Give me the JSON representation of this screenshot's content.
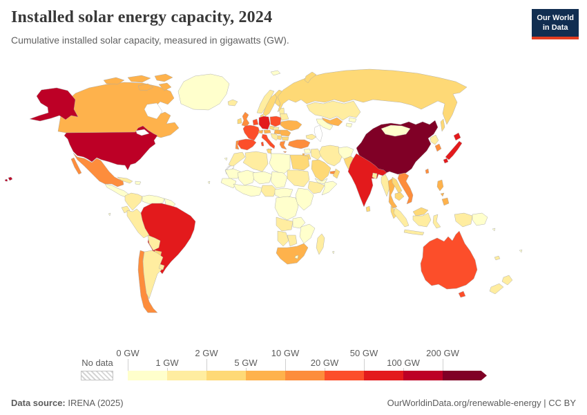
{
  "header": {
    "title": "Installed solar energy capacity, 2024",
    "subtitle": "Cumulative installed solar capacity, measured in gigawatts (GW)."
  },
  "logo": {
    "line1": "Our World",
    "line2": "in Data",
    "bg_color": "#112e51",
    "stripe_color": "#e23d20"
  },
  "legend": {
    "no_data_label": "No data",
    "tick_labels": [
      "0 GW",
      "1 GW",
      "2 GW",
      "5 GW",
      "10 GW",
      "20 GW",
      "50 GW",
      "100 GW",
      "200 GW"
    ]
  },
  "footer": {
    "source_label": "Data source:",
    "source_value": " IRENA (2025)",
    "right_text": "OurWorldinData.org/renewable-energy | CC BY"
  },
  "colors": {
    "ocean": "#ffffff",
    "border": "#a8a8a8"
  },
  "chart_data": {
    "type": "choropleth",
    "title": "Installed solar energy capacity, 2024",
    "unit": "GW",
    "legend_position": "bottom",
    "bins": [
      {
        "key": "0-1",
        "label": "0 GW",
        "color": "#FFFFCC"
      },
      {
        "key": "1-2",
        "label": "1 GW",
        "color": "#FFEDA0"
      },
      {
        "key": "2-5",
        "label": "2 GW",
        "color": "#FED976"
      },
      {
        "key": "5-10",
        "label": "5 GW",
        "color": "#FEB24C"
      },
      {
        "key": "10-20",
        "label": "10 GW",
        "color": "#FD8D3C"
      },
      {
        "key": "20-50",
        "label": "20 GW",
        "color": "#FC4E2A"
      },
      {
        "key": "50-100",
        "label": "50 GW",
        "color": "#E31A1C"
      },
      {
        "key": "100-200",
        "label": "100 GW",
        "color": "#BD0026"
      },
      {
        "key": "200+",
        "label": "200 GW",
        "color": "#800026"
      },
      {
        "key": "no-data",
        "label": "No data",
        "color": "hatch"
      }
    ],
    "countries": [
      {
        "id": "greenland",
        "name": "Greenland",
        "bin": "0-1"
      },
      {
        "id": "iceland",
        "name": "Iceland",
        "bin": "1-2"
      },
      {
        "id": "canada",
        "name": "Canada",
        "bin": "5-10"
      },
      {
        "id": "usa",
        "name": "United States",
        "bin": "100-200"
      },
      {
        "id": "mexico",
        "name": "Mexico",
        "bin": "10-20"
      },
      {
        "id": "central-america",
        "name": "Central America",
        "bin": "0-1"
      },
      {
        "id": "cuba",
        "name": "Cuba",
        "bin": "1-2"
      },
      {
        "id": "hispaniola",
        "name": "Hispaniola",
        "bin": "0-1"
      },
      {
        "id": "colombia",
        "name": "Colombia",
        "bin": "1-2"
      },
      {
        "id": "venezuela",
        "name": "Venezuela",
        "bin": "0-1"
      },
      {
        "id": "guyanas",
        "name": "Guyanas",
        "bin": "0-1"
      },
      {
        "id": "ecuador",
        "name": "Ecuador",
        "bin": "1-2"
      },
      {
        "id": "peru",
        "name": "Peru",
        "bin": "1-2"
      },
      {
        "id": "brazil",
        "name": "Brazil",
        "bin": "50-100"
      },
      {
        "id": "bolivia",
        "name": "Bolivia",
        "bin": "1-2"
      },
      {
        "id": "paraguay",
        "name": "Paraguay",
        "bin": "2-5"
      },
      {
        "id": "chile",
        "name": "Chile",
        "bin": "10-20"
      },
      {
        "id": "argentina",
        "name": "Argentina",
        "bin": "1-2"
      },
      {
        "id": "uruguay",
        "name": "Uruguay",
        "bin": "1-2"
      },
      {
        "id": "norway",
        "name": "Norway",
        "bin": "1-2"
      },
      {
        "id": "sweden",
        "name": "Sweden",
        "bin": "2-5"
      },
      {
        "id": "finland",
        "name": "Finland",
        "bin": "2-5"
      },
      {
        "id": "denmark",
        "name": "Denmark",
        "bin": "2-5"
      },
      {
        "id": "baltics",
        "name": "Baltic states",
        "bin": "1-2"
      },
      {
        "id": "uk",
        "name": "United Kingdom",
        "bin": "10-20"
      },
      {
        "id": "ireland",
        "name": "Ireland",
        "bin": "2-5"
      },
      {
        "id": "benelux",
        "name": "Netherlands and Belgium",
        "bin": "20-50"
      },
      {
        "id": "germany",
        "name": "Germany",
        "bin": "50-100"
      },
      {
        "id": "poland",
        "name": "Poland",
        "bin": "20-50"
      },
      {
        "id": "czechia",
        "name": "Czechia",
        "bin": "2-5"
      },
      {
        "id": "france",
        "name": "France",
        "bin": "20-50"
      },
      {
        "id": "switzerland",
        "name": "Switzerland",
        "bin": "5-10"
      },
      {
        "id": "austria",
        "name": "Austria",
        "bin": "5-10"
      },
      {
        "id": "hungary",
        "name": "Hungary",
        "bin": "5-10"
      },
      {
        "id": "slovakia",
        "name": "Slovakia",
        "bin": "1-2"
      },
      {
        "id": "spain",
        "name": "Spain",
        "bin": "20-50"
      },
      {
        "id": "portugal",
        "name": "Portugal",
        "bin": "10-20"
      },
      {
        "id": "italy",
        "name": "Italy",
        "bin": "20-50"
      },
      {
        "id": "balkans",
        "name": "Western Balkans",
        "bin": "1-2"
      },
      {
        "id": "serbia",
        "name": "Serbia",
        "bin": "2-5"
      },
      {
        "id": "romania",
        "name": "Romania",
        "bin": "5-10"
      },
      {
        "id": "bulgaria",
        "name": "Bulgaria",
        "bin": "2-5"
      },
      {
        "id": "greece",
        "name": "Greece",
        "bin": "10-20"
      },
      {
        "id": "ukraine",
        "name": "Ukraine",
        "bin": "5-10"
      },
      {
        "id": "belarus",
        "name": "Belarus",
        "bin": "1-2"
      },
      {
        "id": "russia",
        "name": "Russia",
        "bin": "2-5"
      },
      {
        "id": "svalbard",
        "name": "Svalbard",
        "bin": "0-1"
      },
      {
        "id": "kazakhstan",
        "name": "Kazakhstan",
        "bin": "1-2"
      },
      {
        "id": "uzbekistan",
        "name": "Uzbekistan",
        "bin": "5-10"
      },
      {
        "id": "turkmenistan",
        "name": "Turkmenistan",
        "bin": "0-1"
      },
      {
        "id": "kyrgyzstan",
        "name": "Kyrgyzstan",
        "bin": "0-1"
      },
      {
        "id": "tajikistan",
        "name": "Tajikistan",
        "bin": "0-1"
      },
      {
        "id": "caucasus",
        "name": "Caucasus",
        "bin": "1-2"
      },
      {
        "id": "turkey",
        "name": "Turkey",
        "bin": "10-20"
      },
      {
        "id": "syria",
        "name": "Syria",
        "bin": "0-1"
      },
      {
        "id": "israel",
        "name": "Israel",
        "bin": "5-10"
      },
      {
        "id": "jordan",
        "name": "Jordan",
        "bin": "2-5"
      },
      {
        "id": "iraq",
        "name": "Iraq",
        "bin": "1-2"
      },
      {
        "id": "iran",
        "name": "Iran",
        "bin": "1-2"
      },
      {
        "id": "afghanistan",
        "name": "Afghanistan",
        "bin": "0-1"
      },
      {
        "id": "pakistan",
        "name": "Pakistan",
        "bin": "2-5"
      },
      {
        "id": "saudi-arabia",
        "name": "Saudi Arabia",
        "bin": "2-5"
      },
      {
        "id": "uae",
        "name": "United Arab Emirates",
        "bin": "10-20"
      },
      {
        "id": "oman",
        "name": "Oman",
        "bin": "2-5"
      },
      {
        "id": "yemen",
        "name": "Yemen",
        "bin": "0-1"
      },
      {
        "id": "morocco",
        "name": "Morocco",
        "bin": "1-2"
      },
      {
        "id": "western-sahara",
        "name": "Western Sahara",
        "bin": "no-data"
      },
      {
        "id": "algeria",
        "name": "Algeria",
        "bin": "1-2"
      },
      {
        "id": "tunisia",
        "name": "Tunisia",
        "bin": "2-5"
      },
      {
        "id": "libya",
        "name": "Libya",
        "bin": "0-1"
      },
      {
        "id": "egypt",
        "name": "Egypt",
        "bin": "2-5"
      },
      {
        "id": "mauritania",
        "name": "Mauritania",
        "bin": "0-1"
      },
      {
        "id": "mali",
        "name": "Mali",
        "bin": "0-1"
      },
      {
        "id": "niger",
        "name": "Niger",
        "bin": "0-1"
      },
      {
        "id": "chad",
        "name": "Chad",
        "bin": "0-1"
      },
      {
        "id": "sudan",
        "name": "Sudan",
        "bin": "1-2"
      },
      {
        "id": "senegal",
        "name": "Senegal and Guinea",
        "bin": "0-1"
      },
      {
        "id": "west-africa",
        "name": "West African coast",
        "bin": "0-1"
      },
      {
        "id": "nigeria",
        "name": "Nigeria",
        "bin": "1-2"
      },
      {
        "id": "cameroon",
        "name": "Cameroon and Central Africa",
        "bin": "0-1"
      },
      {
        "id": "ethiopia",
        "name": "Ethiopia",
        "bin": "1-2"
      },
      {
        "id": "somalia",
        "name": "Somalia",
        "bin": "0-1"
      },
      {
        "id": "east-africa",
        "name": "Kenya and Tanzania",
        "bin": "0-1"
      },
      {
        "id": "drc",
        "name": "DR Congo",
        "bin": "0-1"
      },
      {
        "id": "angola",
        "name": "Angola",
        "bin": "1-2"
      },
      {
        "id": "zambia",
        "name": "Zambia",
        "bin": "0-1"
      },
      {
        "id": "mozambique",
        "name": "Mozambique and Zimbabwe",
        "bin": "0-1"
      },
      {
        "id": "namibia",
        "name": "Namibia",
        "bin": "1-2"
      },
      {
        "id": "botswana",
        "name": "Botswana",
        "bin": "1-2"
      },
      {
        "id": "south-africa",
        "name": "South Africa",
        "bin": "5-10"
      },
      {
        "id": "lesotho",
        "name": "Lesotho",
        "bin": "0-1"
      },
      {
        "id": "madagascar",
        "name": "Madagascar",
        "bin": "1-2"
      },
      {
        "id": "china",
        "name": "China",
        "bin": "200+"
      },
      {
        "id": "taiwan",
        "name": "Taiwan",
        "bin": "10-20"
      },
      {
        "id": "mongolia",
        "name": "Mongolia",
        "bin": "0-1"
      },
      {
        "id": "north-korea",
        "name": "North Korea",
        "bin": "1-2"
      },
      {
        "id": "south-korea",
        "name": "South Korea",
        "bin": "10-20"
      },
      {
        "id": "japan",
        "name": "Japan",
        "bin": "50-100"
      },
      {
        "id": "nepal",
        "name": "Nepal",
        "bin": "1-2"
      },
      {
        "id": "india",
        "name": "India",
        "bin": "50-100"
      },
      {
        "id": "bangladesh",
        "name": "Bangladesh",
        "bin": "1-2"
      },
      {
        "id": "sri-lanka",
        "name": "Sri Lanka",
        "bin": "2-5"
      },
      {
        "id": "myanmar",
        "name": "Myanmar",
        "bin": "1-2"
      },
      {
        "id": "thailand",
        "name": "Thailand",
        "bin": "5-10"
      },
      {
        "id": "laos",
        "name": "Laos",
        "bin": "2-5"
      },
      {
        "id": "cambodia",
        "name": "Cambodia",
        "bin": "2-5"
      },
      {
        "id": "vietnam",
        "name": "Vietnam",
        "bin": "10-20"
      },
      {
        "id": "malaysia",
        "name": "Malaysia",
        "bin": "2-5"
      },
      {
        "id": "indonesia",
        "name": "Indonesia",
        "bin": "1-2"
      },
      {
        "id": "png",
        "name": "Papua New Guinea",
        "bin": "0-1"
      },
      {
        "id": "philippines",
        "name": "Philippines",
        "bin": "5-10"
      },
      {
        "id": "australia",
        "name": "Australia",
        "bin": "20-50"
      },
      {
        "id": "new-zealand",
        "name": "New Zealand",
        "bin": "1-2"
      },
      {
        "id": "new-caledonia",
        "name": "New Caledonia",
        "bin": "1-2"
      },
      {
        "id": "fiji",
        "name": "Fiji",
        "bin": "0-1"
      },
      {
        "id": "solomon-islands",
        "name": "Solomon Islands",
        "bin": "0-1"
      },
      {
        "id": "small-islands",
        "name": "Small islands",
        "bin": "0-1"
      }
    ]
  }
}
